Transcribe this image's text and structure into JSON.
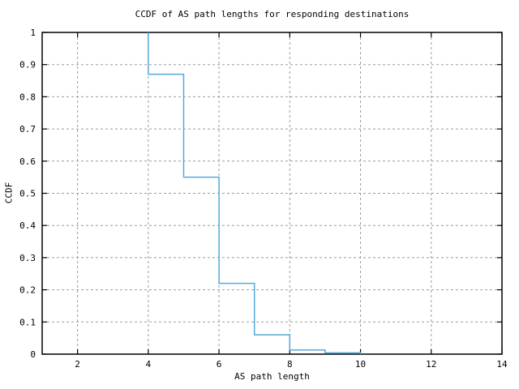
{
  "chart_data": {
    "type": "line",
    "style": "step-ccdf",
    "title": "CCDF of AS path lengths for responding destinations",
    "xlabel": "AS path length",
    "ylabel": "CCDF",
    "xlim": [
      1,
      14
    ],
    "ylim": [
      0,
      1
    ],
    "grid": true,
    "legend_position": "none",
    "x_tick_values": [
      2,
      4,
      6,
      8,
      10,
      12,
      14
    ],
    "x_tick_labels": [
      "2",
      "4",
      "6",
      "8",
      "10",
      "12",
      "14"
    ],
    "y_tick_values": [
      0,
      0.1,
      0.2,
      0.3,
      0.4,
      0.5,
      0.6,
      0.7,
      0.8,
      0.9,
      1
    ],
    "y_tick_labels": [
      "0",
      "0.1",
      "0.2",
      "0.3",
      "0.4",
      "0.5",
      "0.6",
      "0.7",
      "0.8",
      "0.9",
      "1"
    ],
    "series": [
      {
        "name": "CCDF of AS path length",
        "color": "#56a9d8",
        "points": [
          [
            4,
            1
          ],
          [
            4,
            0.87
          ],
          [
            5,
            0.87
          ],
          [
            5,
            0.55
          ],
          [
            6,
            0.55
          ],
          [
            6,
            0.22
          ],
          [
            7,
            0.22
          ],
          [
            7,
            0.06
          ],
          [
            8,
            0.06
          ],
          [
            8,
            0.013
          ],
          [
            9,
            0.013
          ],
          [
            9,
            0.004
          ],
          [
            10,
            0.004
          ],
          [
            10,
            0
          ]
        ]
      }
    ],
    "colors": {
      "background": "#ffffff",
      "axis": "#000000",
      "grid": "#9b9b9b",
      "line": "#56a9d8"
    }
  }
}
